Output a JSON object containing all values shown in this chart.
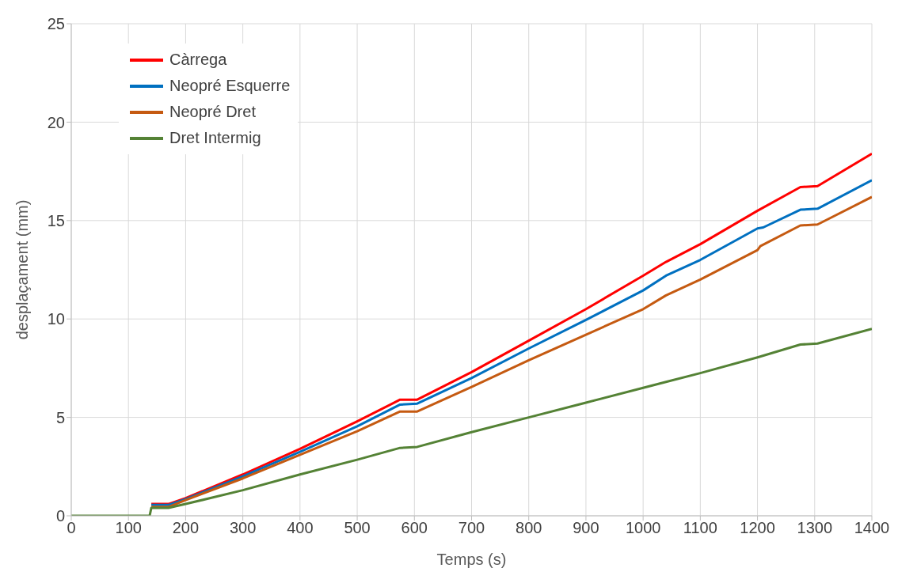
{
  "chart_data": {
    "type": "line",
    "xlabel": "Temps (s)",
    "ylabel": "desplaçament (mm)",
    "xlim": [
      0,
      1400
    ],
    "xticks": [
      0,
      100,
      200,
      300,
      400,
      500,
      600,
      700,
      800,
      900,
      1000,
      1100,
      1200,
      1300,
      1400
    ],
    "ylim": [
      0,
      25
    ],
    "yticks": [
      0,
      5,
      10,
      15,
      20,
      25
    ],
    "grid": true,
    "legend": "top left",
    "marker": "none",
    "line_style": "solid",
    "series": [
      {
        "name": "Càrrega",
        "color": "#ff0000",
        "x": [
          140,
          170,
          200,
          300,
          400,
          500,
          575,
          605,
          700,
          800,
          900,
          1000,
          1040,
          1100,
          1200,
          1275,
          1305,
          1400
        ],
        "values": [
          0.6,
          0.6,
          0.9,
          2.1,
          3.4,
          4.8,
          5.9,
          5.9,
          7.3,
          8.9,
          10.5,
          12.2,
          12.9,
          13.8,
          15.5,
          16.7,
          16.75,
          18.4
        ]
      },
      {
        "name": "Neopré Esquerre",
        "color": "#0070c0",
        "x": [
          140,
          170,
          200,
          300,
          400,
          500,
          575,
          605,
          700,
          800,
          900,
          1000,
          1040,
          1100,
          1200,
          1210,
          1275,
          1305,
          1400
        ],
        "values": [
          0.55,
          0.55,
          0.85,
          2.0,
          3.25,
          4.55,
          5.65,
          5.7,
          7.0,
          8.5,
          9.95,
          11.45,
          12.2,
          13.0,
          14.6,
          14.65,
          15.55,
          15.6,
          17.05
        ]
      },
      {
        "name": "Neopré Dret",
        "color": "#c55a11",
        "x": [
          140,
          170,
          200,
          300,
          400,
          500,
          575,
          605,
          700,
          800,
          900,
          1000,
          1040,
          1100,
          1200,
          1205,
          1275,
          1305,
          1400
        ],
        "values": [
          0.45,
          0.45,
          0.8,
          1.9,
          3.1,
          4.3,
          5.3,
          5.3,
          6.55,
          7.9,
          9.2,
          10.5,
          11.2,
          12.0,
          13.5,
          13.7,
          14.75,
          14.8,
          16.2
        ]
      },
      {
        "name": "Dret Intermig",
        "color": "#548235",
        "x": [
          0,
          137,
          140,
          170,
          200,
          300,
          400,
          500,
          575,
          605,
          700,
          800,
          900,
          1000,
          1040,
          1100,
          1200,
          1275,
          1305,
          1400
        ],
        "values": [
          0,
          0,
          0.4,
          0.4,
          0.6,
          1.3,
          2.1,
          2.85,
          3.45,
          3.5,
          4.25,
          5.0,
          5.75,
          6.5,
          6.8,
          7.25,
          8.05,
          8.7,
          8.75,
          9.5
        ]
      }
    ]
  }
}
